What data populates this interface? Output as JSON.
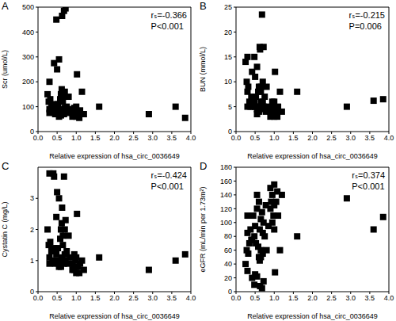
{
  "chart_data": [
    {
      "type": "scatter",
      "title": "A",
      "annotations": [
        "rₛ=-0.366",
        "P<0.001"
      ],
      "x_label": "Relative expression of hsa_circ_0036649",
      "y_label": "Scr (umol/L)",
      "color": "#000000",
      "marker": "square",
      "x": [
        0.25,
        0.28,
        0.3,
        0.3,
        0.32,
        0.35,
        0.38,
        0.4,
        0.42,
        0.45,
        0.48,
        0.5,
        0.5,
        0.52,
        0.55,
        0.55,
        0.58,
        0.6,
        0.6,
        0.62,
        0.62,
        0.65,
        0.65,
        0.68,
        0.7,
        0.7,
        0.72,
        0.75,
        0.78,
        0.8,
        0.85,
        0.9,
        0.9,
        0.92,
        0.95,
        0.95,
        0.98,
        1.0,
        1.0,
        1.02,
        1.05,
        1.08,
        1.1,
        1.15,
        1.2,
        1.6,
        2.9,
        3.6,
        3.85,
        0.48,
        0.63,
        0.68,
        0.72,
        0.42,
        0.55,
        0.3,
        0.65,
        1.0
      ],
      "values": [
        150,
        120,
        200,
        90,
        130,
        100,
        80,
        105,
        275,
        70,
        95,
        250,
        85,
        110,
        290,
        75,
        130,
        150,
        65,
        170,
        90,
        80,
        120,
        70,
        160,
        95,
        85,
        100,
        75,
        140,
        90,
        75,
        60,
        70,
        95,
        65,
        80,
        60,
        100,
        230,
        70,
        55,
        85,
        160,
        70,
        100,
        70,
        100,
        55,
        450,
        465,
        485,
        495,
        110,
        60,
        75,
        140,
        70
      ],
      "xlim": [
        0,
        4
      ],
      "xticks": [
        {
          "value": 0,
          "label": "0.0"
        },
        0.5,
        {
          "value": 1,
          "label": "1.0"
        },
        1.5,
        {
          "value": 2,
          "label": "2.0"
        },
        2.5,
        {
          "value": 3,
          "label": "3.0"
        },
        3.5,
        {
          "value": 4,
          "label": "4.0"
        }
      ],
      "ylim": [
        0,
        500
      ],
      "yticks": [
        0,
        100,
        200,
        300,
        400,
        500
      ]
    },
    {
      "type": "scatter",
      "title": "B",
      "annotations": [
        "rₛ=-0.215",
        "P=0.006"
      ],
      "x_label": "Relative expression of hsa_circ_0036649",
      "y_label": "BUN (mmol/L)",
      "color": "#000000",
      "marker": "square",
      "x": [
        0.25,
        0.28,
        0.3,
        0.3,
        0.32,
        0.35,
        0.38,
        0.4,
        0.42,
        0.45,
        0.48,
        0.5,
        0.5,
        0.52,
        0.55,
        0.55,
        0.58,
        0.6,
        0.6,
        0.62,
        0.62,
        0.65,
        0.65,
        0.68,
        0.7,
        0.7,
        0.72,
        0.75,
        0.78,
        0.8,
        0.85,
        0.9,
        0.9,
        0.92,
        0.95,
        0.95,
        0.98,
        1.0,
        1.0,
        1.02,
        1.05,
        1.08,
        1.1,
        1.15,
        1.2,
        1.6,
        2.9,
        3.6,
        3.85,
        0.48,
        0.63,
        0.68,
        0.72,
        0.42,
        0.55,
        0.3,
        0.65,
        1.0
      ],
      "values": [
        14,
        10,
        15,
        8,
        9,
        6,
        5,
        7,
        12,
        5,
        6,
        11,
        5,
        7,
        13,
        4.5,
        8,
        9,
        4,
        17,
        5,
        6,
        8,
        4.5,
        10,
        6,
        5,
        7,
        4,
        9,
        5,
        4,
        3,
        4,
        6,
        3.5,
        5,
        3,
        6,
        12,
        4,
        3,
        5,
        8,
        4,
        8,
        5,
        6.2,
        6.5,
        15,
        16.5,
        23.5,
        17,
        6,
        3.5,
        5,
        9,
        4
      ],
      "xlim": [
        0,
        4
      ],
      "xticks": [
        {
          "value": 0,
          "label": "0.0"
        },
        0.5,
        {
          "value": 1,
          "label": "1.0"
        },
        1.5,
        {
          "value": 2,
          "label": "2.0"
        },
        2.5,
        {
          "value": 3,
          "label": "3.0"
        },
        3.5,
        {
          "value": 4,
          "label": "4.0"
        }
      ],
      "ylim": [
        0,
        25
      ],
      "yticks": [
        0,
        5,
        10,
        15,
        20,
        25
      ]
    },
    {
      "type": "scatter",
      "title": "C",
      "annotations": [
        "rₛ=-0.424",
        "P<0.001"
      ],
      "x_label": "Relative expression of hsa_circ_0036649",
      "y_label": "Cystatin C (mg/L)",
      "color": "#000000",
      "marker": "square",
      "x": [
        0.25,
        0.28,
        0.3,
        0.3,
        0.32,
        0.35,
        0.38,
        0.4,
        0.42,
        0.45,
        0.48,
        0.5,
        0.5,
        0.52,
        0.55,
        0.55,
        0.58,
        0.6,
        0.6,
        0.62,
        0.62,
        0.65,
        0.65,
        0.68,
        0.7,
        0.7,
        0.72,
        0.75,
        0.78,
        0.8,
        0.85,
        0.9,
        0.9,
        0.92,
        0.95,
        0.95,
        0.98,
        1.0,
        1.0,
        1.02,
        1.05,
        1.08,
        1.1,
        1.15,
        1.2,
        1.6,
        2.9,
        3.6,
        3.85,
        0.48,
        0.63,
        0.68,
        0.72,
        0.42,
        0.55,
        0.3,
        0.65,
        1.0
      ],
      "values": [
        2.0,
        1.5,
        3.8,
        1.1,
        1.6,
        1.3,
        1.0,
        3.8,
        3.7,
        0.9,
        1.2,
        3.2,
        1.0,
        1.4,
        3.0,
        0.9,
        1.7,
        2.0,
        0.8,
        2.2,
        1.1,
        1.0,
        1.5,
        0.9,
        2.0,
        1.2,
        1.0,
        1.3,
        0.9,
        1.8,
        1.1,
        0.9,
        0.7,
        0.8,
        1.2,
        0.7,
        1.0,
        0.6,
        1.1,
        2.5,
        0.8,
        0.6,
        0.9,
        1.0,
        0.7,
        1.1,
        0.7,
        1.0,
        1.2,
        2.4,
        2.7,
        3.7,
        2.3,
        1.4,
        0.8,
        0.9,
        1.8,
        0.8
      ],
      "xlim": [
        0,
        4
      ],
      "xticks": [
        {
          "value": 0,
          "label": "0.0"
        },
        0.5,
        {
          "value": 1,
          "label": "1.0"
        },
        1.5,
        {
          "value": 2,
          "label": "2.0"
        },
        2.5,
        {
          "value": 3,
          "label": "3.0"
        },
        3.5,
        {
          "value": 4,
          "label": "4.0"
        }
      ],
      "ylim": [
        0,
        4
      ],
      "yticks": [
        0,
        1,
        2,
        3
      ]
    },
    {
      "type": "scatter",
      "title": "D",
      "annotations": [
        "rₛ=0.374",
        "P<0.001"
      ],
      "x_label": "Relative expression of hsa_circ_0036649",
      "y_label": "eGFR (mL/min per 1.73m²)",
      "color": "#000000",
      "marker": "square",
      "x": [
        0.25,
        0.28,
        0.3,
        0.3,
        0.32,
        0.35,
        0.38,
        0.4,
        0.42,
        0.45,
        0.48,
        0.5,
        0.5,
        0.52,
        0.55,
        0.55,
        0.58,
        0.6,
        0.6,
        0.62,
        0.62,
        0.65,
        0.65,
        0.68,
        0.7,
        0.7,
        0.72,
        0.75,
        0.78,
        0.8,
        0.85,
        0.9,
        0.9,
        0.92,
        0.95,
        0.95,
        0.98,
        1.0,
        1.0,
        1.02,
        1.05,
        1.08,
        1.1,
        1.15,
        1.2,
        1.6,
        2.9,
        3.6,
        3.85,
        0.48,
        0.63,
        0.68,
        0.72,
        0.42,
        0.55,
        0.3,
        0.65,
        1.0
      ],
      "values": [
        40,
        60,
        30,
        85,
        55,
        70,
        90,
        75,
        20,
        110,
        80,
        25,
        95,
        70,
        22,
        120,
        65,
        50,
        130,
        45,
        90,
        105,
        60,
        115,
        55,
        85,
        100,
        80,
        125,
        60,
        95,
        120,
        150,
        130,
        100,
        140,
        110,
        155,
        90,
        28,
        130,
        145,
        110,
        60,
        140,
        80,
        135,
        90,
        108,
        10,
        8,
        5,
        15,
        75,
        140,
        110,
        50,
        125
      ],
      "xlim": [
        0,
        4
      ],
      "xticks": [
        {
          "value": 0,
          "label": "0.0"
        },
        0.5,
        {
          "value": 1,
          "label": "1.0"
        },
        1.5,
        {
          "value": 2,
          "label": "2.0"
        },
        2.5,
        {
          "value": 3,
          "label": "3.0"
        },
        3.5,
        {
          "value": 4,
          "label": "4.0"
        }
      ],
      "ylim": [
        0,
        180
      ],
      "yticks": [
        0,
        20,
        40,
        60,
        80,
        100,
        120,
        140,
        160,
        180
      ]
    }
  ]
}
